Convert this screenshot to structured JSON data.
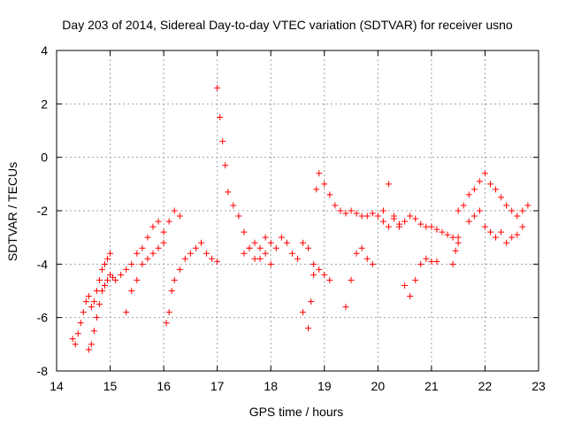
{
  "chart_data": {
    "type": "scatter",
    "title": "Day 203 of 2014, Sidereal Day-to-day VTEC variation (SDTVAR) for receiver usno",
    "xlabel": "GPS time / hours",
    "ylabel": "SDTVAR / TECUs",
    "xlim": [
      14,
      23
    ],
    "ylim": [
      -8,
      4
    ],
    "xticks": [
      "14",
      "15",
      "16",
      "17",
      "18",
      "19",
      "20",
      "21",
      "22",
      "23"
    ],
    "yticks": [
      "-8",
      "-6",
      "-4",
      "-2",
      "0",
      "2",
      "4"
    ],
    "grid": true,
    "marker": "+",
    "marker_color": "#ff0000",
    "series": [
      {
        "name": "SDTVAR",
        "x": [
          14.3,
          14.35,
          14.4,
          14.45,
          14.5,
          14.55,
          14.6,
          14.65,
          14.7,
          14.75,
          14.8,
          14.85,
          14.9,
          14.95,
          15.0,
          14.6,
          14.65,
          14.7,
          14.75,
          14.8,
          14.85,
          14.9,
          14.95,
          15.0,
          15.05,
          15.1,
          15.2,
          15.3,
          15.4,
          15.5,
          15.6,
          15.7,
          15.8,
          15.9,
          16.0,
          16.1,
          16.2,
          16.3,
          15.3,
          15.4,
          15.5,
          15.6,
          15.7,
          15.8,
          15.9,
          16.0,
          16.05,
          16.1,
          16.15,
          16.2,
          16.3,
          16.4,
          16.5,
          16.6,
          16.7,
          16.8,
          16.9,
          17.0,
          17.0,
          17.05,
          17.1,
          17.15,
          17.2,
          17.3,
          17.4,
          17.5,
          17.6,
          17.7,
          17.8,
          17.9,
          18.0,
          17.5,
          17.6,
          17.7,
          17.8,
          17.9,
          18.0,
          18.1,
          18.2,
          18.3,
          18.4,
          18.5,
          18.6,
          18.7,
          18.8,
          18.9,
          19.0,
          19.1,
          18.6,
          18.7,
          18.75,
          18.8,
          18.85,
          18.9,
          19.0,
          19.1,
          19.2,
          19.3,
          19.4,
          19.5,
          19.6,
          19.7,
          19.8,
          19.9,
          20.0,
          20.1,
          20.2,
          20.3,
          20.4,
          19.4,
          19.5,
          19.6,
          19.7,
          19.8,
          19.9,
          20.1,
          20.2,
          20.3,
          20.4,
          20.5,
          20.6,
          20.7,
          20.8,
          20.9,
          21.0,
          21.1,
          20.5,
          20.6,
          20.7,
          20.8,
          20.9,
          21.0,
          21.1,
          21.2,
          21.3,
          21.4,
          21.5,
          21.4,
          21.45,
          21.5,
          21.5,
          21.6,
          21.7,
          21.8,
          21.9,
          22.0,
          22.1,
          22.2,
          22.3,
          22.4,
          22.5,
          22.6,
          22.7,
          22.8,
          21.7,
          21.8,
          21.9,
          22.0,
          22.1,
          22.2,
          22.3,
          22.4,
          22.5,
          22.6,
          22.7
        ],
        "y": [
          -6.8,
          -7.0,
          -6.6,
          -6.2,
          -5.8,
          -5.4,
          -5.2,
          -5.6,
          -5.4,
          -5.0,
          -4.6,
          -4.2,
          -4.0,
          -3.8,
          -3.6,
          -7.2,
          -7.0,
          -6.5,
          -6.0,
          -5.5,
          -5.0,
          -4.8,
          -4.6,
          -4.4,
          -4.5,
          -4.6,
          -4.4,
          -4.2,
          -4.0,
          -3.6,
          -3.4,
          -3.0,
          -2.6,
          -2.4,
          -2.8,
          -2.4,
          -2.0,
          -2.2,
          -5.8,
          -5.0,
          -4.6,
          -4.0,
          -3.8,
          -3.6,
          -3.4,
          -3.2,
          -6.2,
          -5.8,
          -5.0,
          -4.6,
          -4.2,
          -3.8,
          -3.6,
          -3.4,
          -3.2,
          -3.6,
          -3.8,
          -3.9,
          2.6,
          1.5,
          0.6,
          -0.3,
          -1.3,
          -1.8,
          -2.2,
          -2.8,
          -3.4,
          -3.8,
          -3.4,
          -3.0,
          -3.2,
          -3.6,
          -3.4,
          -3.2,
          -3.8,
          -3.6,
          -4.0,
          -3.4,
          -3.0,
          -3.2,
          -3.6,
          -3.8,
          -3.2,
          -3.4,
          -4.0,
          -4.2,
          -4.4,
          -4.6,
          -5.8,
          -6.4,
          -5.4,
          -4.4,
          -1.2,
          -0.6,
          -1.0,
          -1.4,
          -1.8,
          -2.0,
          -2.1,
          -2.0,
          -2.1,
          -2.2,
          -2.2,
          -2.1,
          -2.2,
          -2.0,
          -1.0,
          -2.3,
          -2.5,
          -5.6,
          -4.6,
          -3.6,
          -3.4,
          -3.8,
          -4.0,
          -2.4,
          -2.6,
          -2.2,
          -2.6,
          -4.8,
          -5.2,
          -4.6,
          -4.0,
          -3.8,
          -3.9,
          -3.9,
          -2.4,
          -2.2,
          -2.3,
          -2.5,
          -2.6,
          -2.6,
          -2.7,
          -2.8,
          -2.9,
          -3.0,
          -3.2,
          -4.0,
          -3.5,
          -3.0,
          -2.0,
          -1.8,
          -1.4,
          -1.2,
          -0.9,
          -0.6,
          -1.0,
          -1.2,
          -1.5,
          -1.8,
          -2.0,
          -2.2,
          -2.0,
          -1.8,
          -2.4,
          -2.2,
          -2.0,
          -2.6,
          -2.8,
          -3.0,
          -2.8,
          -3.2,
          -3.0,
          -2.9,
          -2.6
        ]
      }
    ]
  }
}
